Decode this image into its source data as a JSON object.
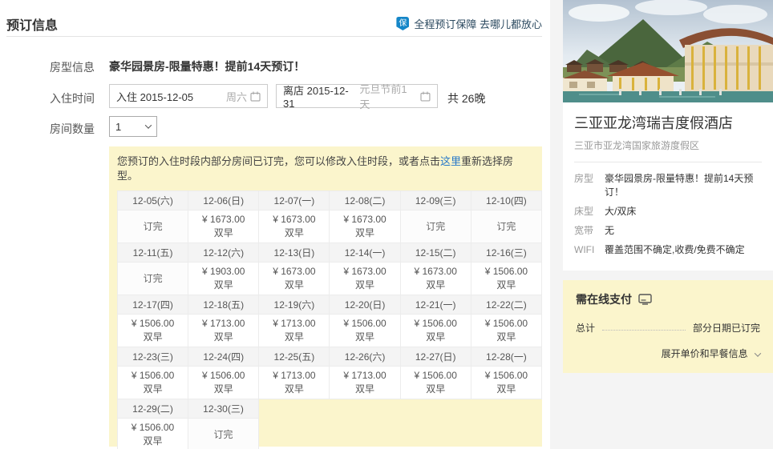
{
  "page": {
    "title": "预订信息"
  },
  "guarantee": {
    "badge": "保",
    "text": "全程预订保障 去哪儿都放心"
  },
  "form": {
    "room_type_label": "房型信息",
    "room_type_value": "豪华园景房-限量特惠！提前14天预订！",
    "stay_label": "入住时间",
    "checkin_text": "入住 2015-12-05",
    "checkin_note": "周六",
    "checkout_text": "离店 2015-12-31",
    "checkout_note": "元旦节前1天",
    "nights_text": "共 26晚",
    "rooms_label": "房间数量",
    "rooms_value": "1"
  },
  "notice": {
    "text_before": "您预订的入住时段内部分房间已订完，您可以修改入住时段，或者点击",
    "link_text": "这里",
    "text_after": "重新选择房型。"
  },
  "calendar": {
    "sold_out_label": "订完",
    "breakfast_label": "双早",
    "rows": [
      {
        "cells": [
          {
            "date": "12-05(六)",
            "sold_out": true
          },
          {
            "date": "12-06(日)",
            "price": "¥ 1673.00"
          },
          {
            "date": "12-07(一)",
            "price": "¥ 1673.00"
          },
          {
            "date": "12-08(二)",
            "price": "¥ 1673.00"
          },
          {
            "date": "12-09(三)",
            "sold_out": true
          },
          {
            "date": "12-10(四)",
            "sold_out": true
          }
        ]
      },
      {
        "cells": [
          {
            "date": "12-11(五)",
            "sold_out": true
          },
          {
            "date": "12-12(六)",
            "price": "¥ 1903.00"
          },
          {
            "date": "12-13(日)",
            "price": "¥ 1673.00"
          },
          {
            "date": "12-14(一)",
            "price": "¥ 1673.00"
          },
          {
            "date": "12-15(二)",
            "price": "¥ 1673.00"
          },
          {
            "date": "12-16(三)",
            "price": "¥ 1506.00"
          }
        ]
      },
      {
        "cells": [
          {
            "date": "12-17(四)",
            "price": "¥ 1506.00"
          },
          {
            "date": "12-18(五)",
            "price": "¥ 1713.00"
          },
          {
            "date": "12-19(六)",
            "price": "¥ 1713.00"
          },
          {
            "date": "12-20(日)",
            "price": "¥ 1506.00"
          },
          {
            "date": "12-21(一)",
            "price": "¥ 1506.00"
          },
          {
            "date": "12-22(二)",
            "price": "¥ 1506.00"
          }
        ]
      },
      {
        "cells": [
          {
            "date": "12-23(三)",
            "price": "¥ 1506.00"
          },
          {
            "date": "12-24(四)",
            "price": "¥ 1506.00"
          },
          {
            "date": "12-25(五)",
            "price": "¥ 1713.00"
          },
          {
            "date": "12-26(六)",
            "price": "¥ 1713.00"
          },
          {
            "date": "12-27(日)",
            "price": "¥ 1506.00"
          },
          {
            "date": "12-28(一)",
            "price": "¥ 1506.00"
          }
        ]
      },
      {
        "cells": [
          {
            "date": "12-29(二)",
            "price": "¥ 1506.00"
          },
          {
            "date": "12-30(三)",
            "sold_out": true
          }
        ]
      }
    ]
  },
  "hotel": {
    "name": "三亚亚龙湾瑞吉度假酒店",
    "address": "三亚市亚龙湾国家旅游度假区",
    "details": [
      {
        "label": "房型",
        "value": "豪华园景房-限量特惠！提前14天预订！"
      },
      {
        "label": "床型",
        "value": "大/双床"
      },
      {
        "label": "宽带",
        "value": "无"
      },
      {
        "label": "WIFI",
        "value": "覆盖范围不确定,收费/免费不确定"
      }
    ]
  },
  "payment": {
    "title": "需在线支付",
    "total_label": "总计",
    "total_status": "部分日期已订完",
    "expand_label": "展开单价和早餐信息"
  },
  "colors": {
    "highlight_yellow": "#fbf5cc",
    "link_blue": "#2577c8",
    "shield_blue": "#1586c8"
  }
}
